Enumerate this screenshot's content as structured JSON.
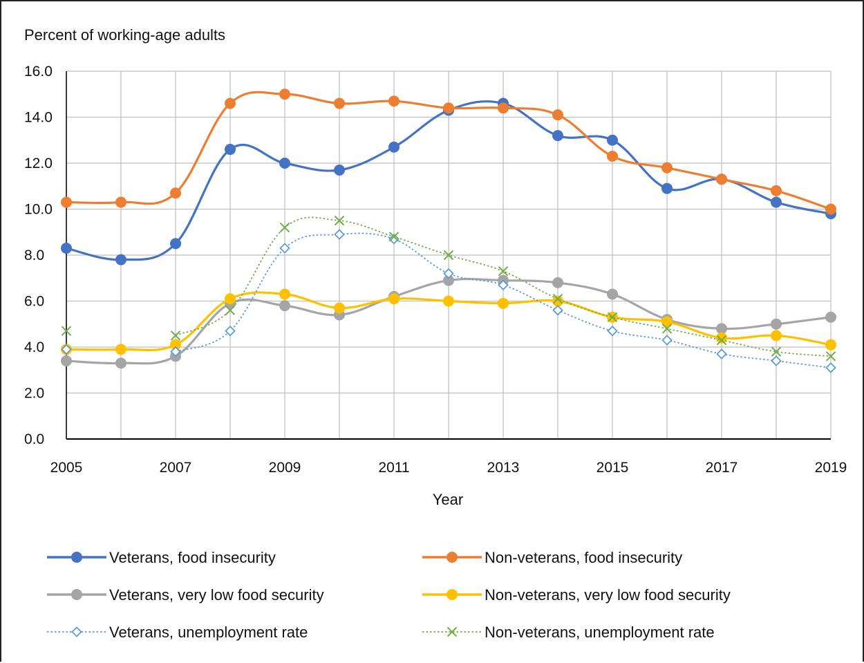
{
  "chart_data": {
    "type": "line",
    "ylabel": "Percent of working-age adults",
    "xlabel": "Year",
    "x": [
      2005,
      2006,
      2007,
      2008,
      2009,
      2010,
      2011,
      2012,
      2013,
      2014,
      2015,
      2016,
      2017,
      2018,
      2019
    ],
    "x_tick_labels": [
      "2005",
      "2007",
      "2009",
      "2011",
      "2013",
      "2015",
      "2017",
      "2019"
    ],
    "y_tick_labels": [
      "0.0",
      "2.0",
      "4.0",
      "6.0",
      "8.0",
      "10.0",
      "12.0",
      "14.0",
      "16.0"
    ],
    "ylim": [
      0,
      16
    ],
    "grid": true,
    "legend_placement": "bottom",
    "series": [
      {
        "name": "Veterans, food insecurity",
        "color": "#4472C4",
        "style": "solid",
        "marker": "circle",
        "values": [
          8.3,
          7.8,
          8.5,
          12.6,
          12.0,
          11.7,
          12.7,
          14.3,
          14.6,
          13.2,
          13.0,
          10.9,
          11.3,
          10.3,
          9.8
        ]
      },
      {
        "name": "Non-veterans, food insecurity",
        "color": "#ED7D31",
        "style": "solid",
        "marker": "circle",
        "values": [
          10.3,
          10.3,
          10.7,
          14.6,
          15.0,
          14.6,
          14.7,
          14.4,
          14.4,
          14.1,
          12.3,
          11.8,
          11.3,
          10.8,
          10.0
        ]
      },
      {
        "name": "Veterans, very low food security",
        "color": "#A5A5A5",
        "style": "solid",
        "marker": "circle",
        "values": [
          3.4,
          3.3,
          3.6,
          5.9,
          5.8,
          5.4,
          6.2,
          6.9,
          6.9,
          6.8,
          6.3,
          5.2,
          4.8,
          5.0,
          5.3
        ]
      },
      {
        "name": "Non-veterans, very low food security",
        "color": "#FFC000",
        "style": "solid",
        "marker": "circle",
        "values": [
          3.9,
          3.9,
          4.1,
          6.1,
          6.3,
          5.7,
          6.1,
          6.0,
          5.9,
          6.0,
          5.3,
          5.1,
          4.4,
          4.5,
          4.1
        ]
      },
      {
        "name": "Veterans, unemployment rate",
        "color": "#5B9BD5",
        "style": "dotted",
        "marker": "diamond",
        "values": [
          3.9,
          null,
          3.8,
          4.7,
          8.3,
          8.9,
          8.7,
          7.2,
          6.7,
          5.6,
          4.7,
          4.3,
          3.7,
          3.4,
          3.1
        ]
      },
      {
        "name": "Non-veterans, unemployment rate",
        "color": "#70AD47",
        "style": "dotted",
        "marker": "x",
        "values": [
          4.7,
          null,
          4.5,
          5.6,
          9.2,
          9.5,
          8.8,
          8.0,
          7.3,
          6.1,
          5.3,
          4.8,
          4.3,
          3.8,
          3.6
        ]
      }
    ]
  }
}
